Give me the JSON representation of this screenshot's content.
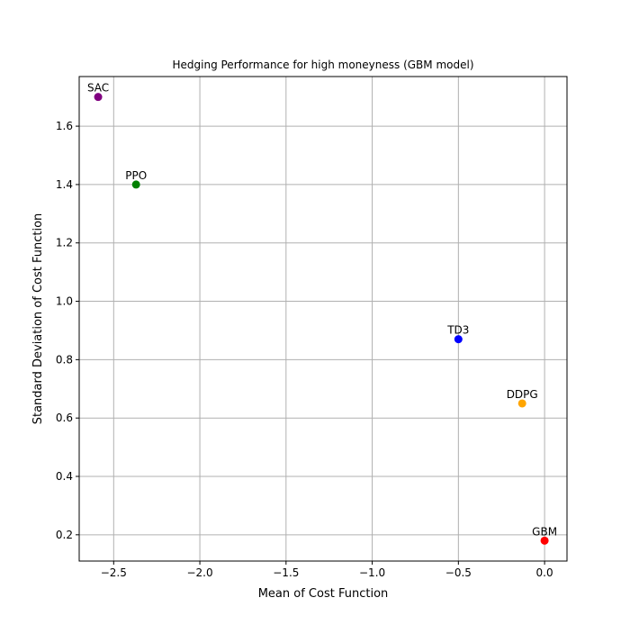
{
  "chart_data": {
    "type": "scatter",
    "title": "Hedging Performance for high moneyness (GBM model)",
    "xlabel": "Mean of Cost Function",
    "ylabel": "Standard Deviation of Cost Function",
    "xlim": [
      -2.7,
      0.13
    ],
    "ylim": [
      0.11,
      1.77
    ],
    "xticks": [
      -2.5,
      -2.0,
      -1.5,
      -1.0,
      -0.5,
      0.0
    ],
    "xtick_labels": [
      "−2.5",
      "−2.0",
      "−1.5",
      "−1.0",
      "−0.5",
      "0.0"
    ],
    "yticks": [
      0.2,
      0.4,
      0.6,
      0.8,
      1.0,
      1.2,
      1.4,
      1.6
    ],
    "ytick_labels": [
      "0.2",
      "0.4",
      "0.6",
      "0.8",
      "1.0",
      "1.2",
      "1.4",
      "1.6"
    ],
    "grid": true,
    "points": [
      {
        "label": "SAC",
        "x": -2.59,
        "y": 1.7,
        "color": "#800080"
      },
      {
        "label": "PPO",
        "x": -2.37,
        "y": 1.4,
        "color": "#008000"
      },
      {
        "label": "TD3",
        "x": -0.5,
        "y": 0.87,
        "color": "#0000ff"
      },
      {
        "label": "DDPG",
        "x": -0.13,
        "y": 0.65,
        "color": "#ffa500"
      },
      {
        "label": "GBM",
        "x": 0.0,
        "y": 0.18,
        "color": "#ff0000"
      }
    ]
  }
}
